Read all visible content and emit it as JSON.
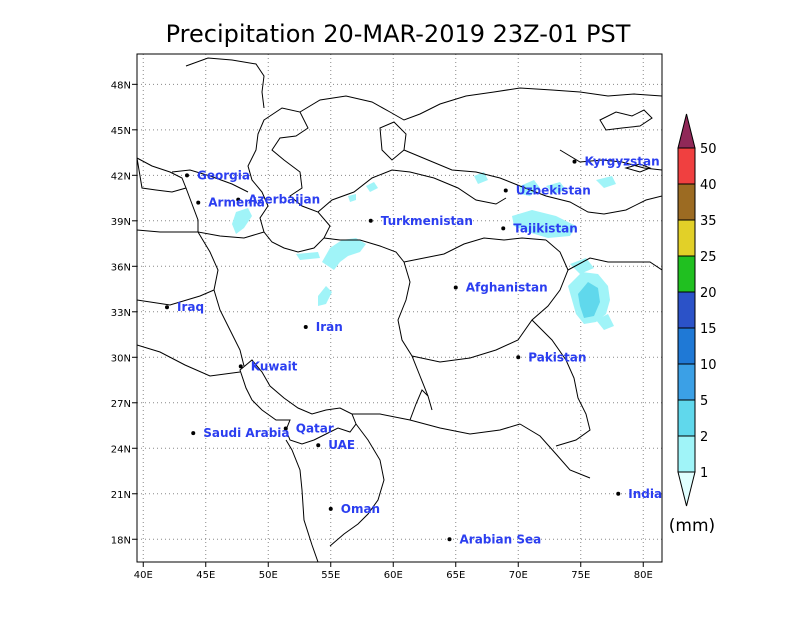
{
  "title": "Precipitation 20-MAR-2019 23Z-01 PST",
  "map": {
    "lon_range": [
      39.5,
      81.5
    ],
    "lat_range": [
      16.5,
      50.0
    ],
    "lon_ticks": [
      {
        "value": 40,
        "label": "40E"
      },
      {
        "value": 45,
        "label": "45E"
      },
      {
        "value": 50,
        "label": "50E"
      },
      {
        "value": 55,
        "label": "55E"
      },
      {
        "value": 60,
        "label": "60E"
      },
      {
        "value": 65,
        "label": "65E"
      },
      {
        "value": 70,
        "label": "70E"
      },
      {
        "value": 75,
        "label": "75E"
      },
      {
        "value": 80,
        "label": "80E"
      }
    ],
    "lat_ticks": [
      {
        "value": 18,
        "label": "18N"
      },
      {
        "value": 21,
        "label": "21N"
      },
      {
        "value": 24,
        "label": "24N"
      },
      {
        "value": 27,
        "label": "27N"
      },
      {
        "value": 30,
        "label": "30N"
      },
      {
        "value": 33,
        "label": "33N"
      },
      {
        "value": 36,
        "label": "36N"
      },
      {
        "value": 39,
        "label": "39N"
      },
      {
        "value": 42,
        "label": "42N"
      },
      {
        "value": 45,
        "label": "45N"
      },
      {
        "value": 48,
        "label": "48N"
      }
    ],
    "grid": "dotted",
    "places": [
      {
        "name": "Georgia",
        "lon": 43.5,
        "lat": 42.0
      },
      {
        "name": "Azerbaijan",
        "lon": 47.6,
        "lat": 40.4
      },
      {
        "name": "Armenia",
        "lon": 44.4,
        "lat": 40.2
      },
      {
        "name": "Turkmenistan",
        "lon": 58.2,
        "lat": 39.0
      },
      {
        "name": "Uzbekistan",
        "lon": 69.0,
        "lat": 41.0
      },
      {
        "name": "Kyrgyzstan",
        "lon": 74.5,
        "lat": 42.9
      },
      {
        "name": "Tajikistan",
        "lon": 68.8,
        "lat": 38.5
      },
      {
        "name": "Iraq",
        "lon": 41.9,
        "lat": 33.3
      },
      {
        "name": "Iran",
        "lon": 53.0,
        "lat": 32.0
      },
      {
        "name": "Afghanistan",
        "lon": 65.0,
        "lat": 34.6
      },
      {
        "name": "Pakistan",
        "lon": 70.0,
        "lat": 30.0
      },
      {
        "name": "Kuwait",
        "lon": 47.8,
        "lat": 29.4
      },
      {
        "name": "Qatar",
        "lon": 51.4,
        "lat": 25.3
      },
      {
        "name": "Saudi Arabia",
        "lon": 44.0,
        "lat": 25.0
      },
      {
        "name": "UAE",
        "lon": 54.0,
        "lat": 24.2
      },
      {
        "name": "Oman",
        "lon": 55.0,
        "lat": 20.0
      },
      {
        "name": "Arabian Sea",
        "lon": 64.5,
        "lat": 18.0
      },
      {
        "name": "India",
        "lon": 78.0,
        "lat": 21.0
      }
    ]
  },
  "colorbar": {
    "unit": "(mm)",
    "levels": [
      "1",
      "2",
      "5",
      "10",
      "15",
      "20",
      "25",
      "35",
      "40",
      "50"
    ],
    "colors": [
      "#e0ffff",
      "#a0f4f8",
      "#60d8ec",
      "#3ba0e6",
      "#1f79d6",
      "#2b52c8",
      "#20c020",
      "#e2d028",
      "#9c6b22",
      "#f04040",
      "#c02858",
      "#902858"
    ]
  }
}
